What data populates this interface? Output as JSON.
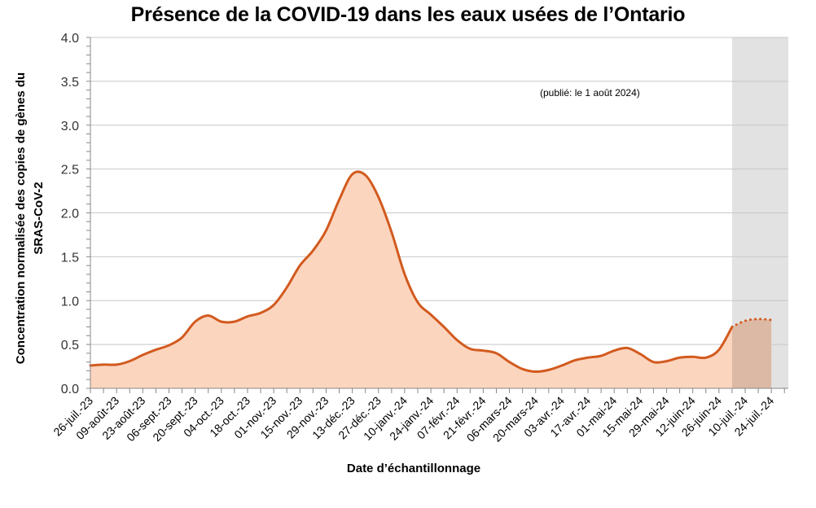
{
  "chart_data": {
    "type": "area",
    "title": "Présence de la COVID-19 dans les eaux usées de l’Ontario",
    "annotation": "(publié: le 1 août 2024)",
    "xlabel": "Date d’échantillonnage",
    "ylabel_line1": "Concentration  normalisée  des copies de gènes du",
    "ylabel_line2": "SRAS-CoV-2",
    "ylabel": "Concentration normalisée des copies de gènes du SRAS-CoV-2",
    "ylim": [
      0,
      4.0
    ],
    "yticks": [
      "0.0",
      "0.5",
      "1.0",
      "1.5",
      "2.0",
      "2.5",
      "3.0",
      "3.5",
      "4.0"
    ],
    "grid": true,
    "legend": "none",
    "x_tick_labels": [
      "26-juil.-23",
      "09-août-23",
      "23-août-23",
      "06-sept.-23",
      "20-sept.-23",
      "04-oct.-23",
      "18-oct.-23",
      "01-nov.-23",
      "15-nov.-23",
      "29-nov.-23",
      "13-déc.-23",
      "27-déc.-23",
      "10-janv.-24",
      "24-janv.-24",
      "07-févr.-24",
      "21-févr.-24",
      "06-mars-24",
      "20-mars-24",
      "03-avr.-24",
      "17-avr.-24",
      "01-mai-24",
      "15-mai-24",
      "29-mai-24",
      "12-juin-24",
      "26-juin-24",
      "10-juil.-24",
      "24-juil.-24"
    ],
    "x_interval": "weekly",
    "values": [
      0.26,
      0.27,
      0.27,
      0.31,
      0.38,
      0.44,
      0.49,
      0.58,
      0.76,
      0.83,
      0.76,
      0.76,
      0.82,
      0.86,
      0.95,
      1.15,
      1.4,
      1.57,
      1.8,
      2.15,
      2.44,
      2.43,
      2.18,
      1.78,
      1.3,
      0.98,
      0.84,
      0.7,
      0.55,
      0.45,
      0.43,
      0.4,
      0.3,
      0.22,
      0.19,
      0.21,
      0.26,
      0.32,
      0.35,
      0.37,
      0.43,
      0.46,
      0.39,
      0.3,
      0.31,
      0.35,
      0.36,
      0.35,
      0.44,
      0.7,
      0.77,
      0.79,
      0.78
    ],
    "provisional_from_index": 49,
    "shaded_region": {
      "start_index": 49,
      "end_index": 53,
      "meaning": "provisional data"
    },
    "colors": {
      "line": "#d25a1e",
      "fill": "#fcd5bf",
      "shade": "#e2e2e2",
      "grid": "#c8c8c8"
    }
  }
}
